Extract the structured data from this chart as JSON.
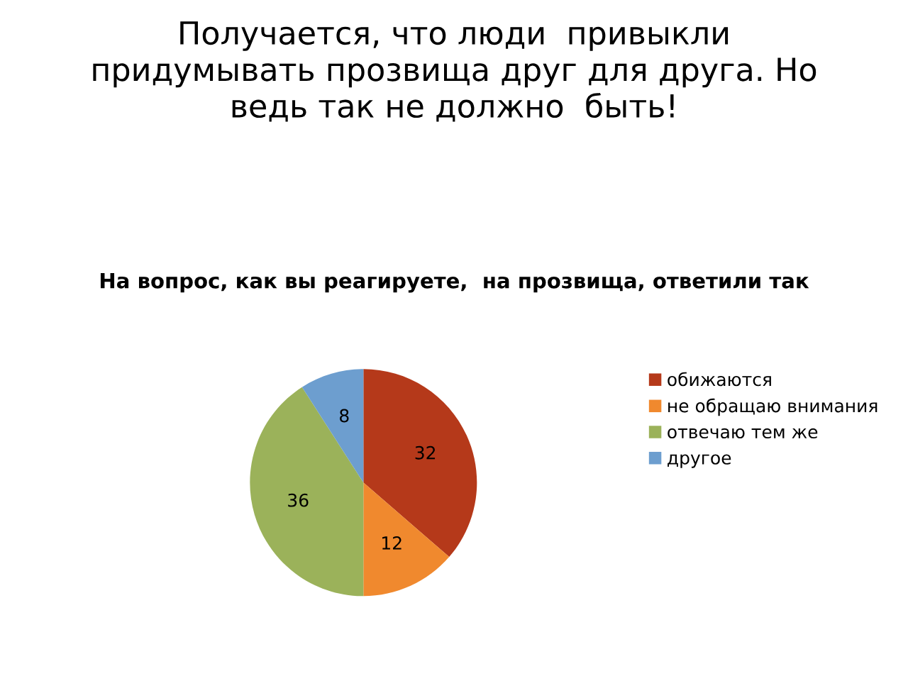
{
  "chart_data": {
    "type": "pie",
    "title": "Получается, что люди  привыкли\nпридумывать прозвища друг для друга. Но\nведь так не должно  быть!",
    "subtitle": "На вопрос, как вы реагируете,  на прозвища, ответили так",
    "categories": [
      "обижаются",
      "не обращаю внимания",
      "отвечаю тем же",
      "другое"
    ],
    "values": [
      32,
      12,
      36,
      8
    ],
    "colors": [
      "#b5391a",
      "#f0892e",
      "#9bb25a",
      "#6d9ecf"
    ],
    "data_labels": true,
    "legend": "right"
  }
}
